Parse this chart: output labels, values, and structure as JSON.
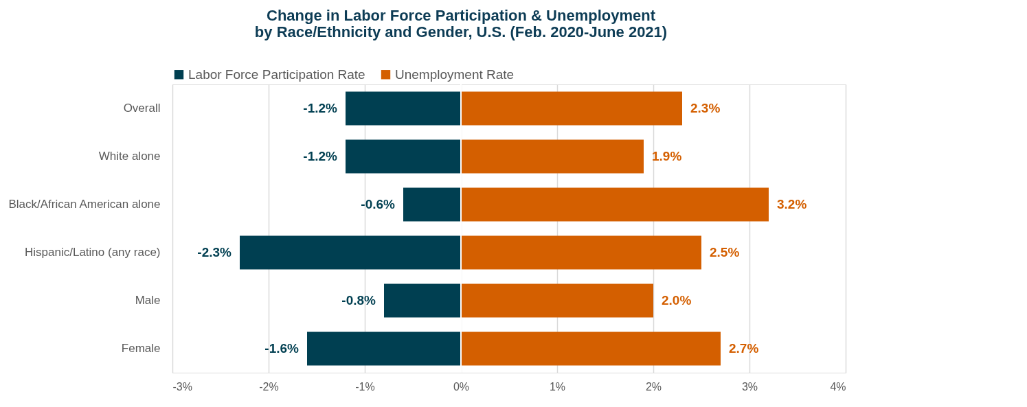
{
  "chart_data": {
    "type": "bar",
    "orientation": "horizontal",
    "title": "Change in Labor Force Participation & Unemployment\nby Race/Ethnicity and Gender, U.S. (Feb. 2020-June 2021)",
    "categories": [
      "Overall",
      "White alone",
      "Black/African American alone",
      "Hispanic/Latino (any race)",
      "Male",
      "Female"
    ],
    "series": [
      {
        "name": "Labor Force Participation Rate",
        "color": "#003f51",
        "values": [
          -1.2,
          -1.2,
          -0.6,
          -2.3,
          -0.8,
          -1.6
        ],
        "value_labels": [
          "-1.2%",
          "-1.2%",
          "-0.6%",
          "-2.3%",
          "-0.8%",
          "-1.6%"
        ]
      },
      {
        "name": "Unemployment Rate",
        "color": "#d45f00",
        "values": [
          2.3,
          1.9,
          3.2,
          2.5,
          2.0,
          2.7
        ],
        "value_labels": [
          "2.3%",
          "1.9%",
          "3.2%",
          "2.5%",
          "2.0%",
          "2.7%"
        ]
      }
    ],
    "xlim": [
      -3,
      4
    ],
    "xticks": [
      {
        "value": -3,
        "label": "-3%"
      },
      {
        "value": -2,
        "label": "-2%"
      },
      {
        "value": -1,
        "label": "-1%"
      },
      {
        "value": 0,
        "label": "0%"
      },
      {
        "value": 1,
        "label": "1%"
      },
      {
        "value": 2,
        "label": "2%"
      },
      {
        "value": 3,
        "label": "3%"
      },
      {
        "value": 4,
        "label": "4%"
      }
    ],
    "grid": "x",
    "legend": "top",
    "stacked": true
  }
}
